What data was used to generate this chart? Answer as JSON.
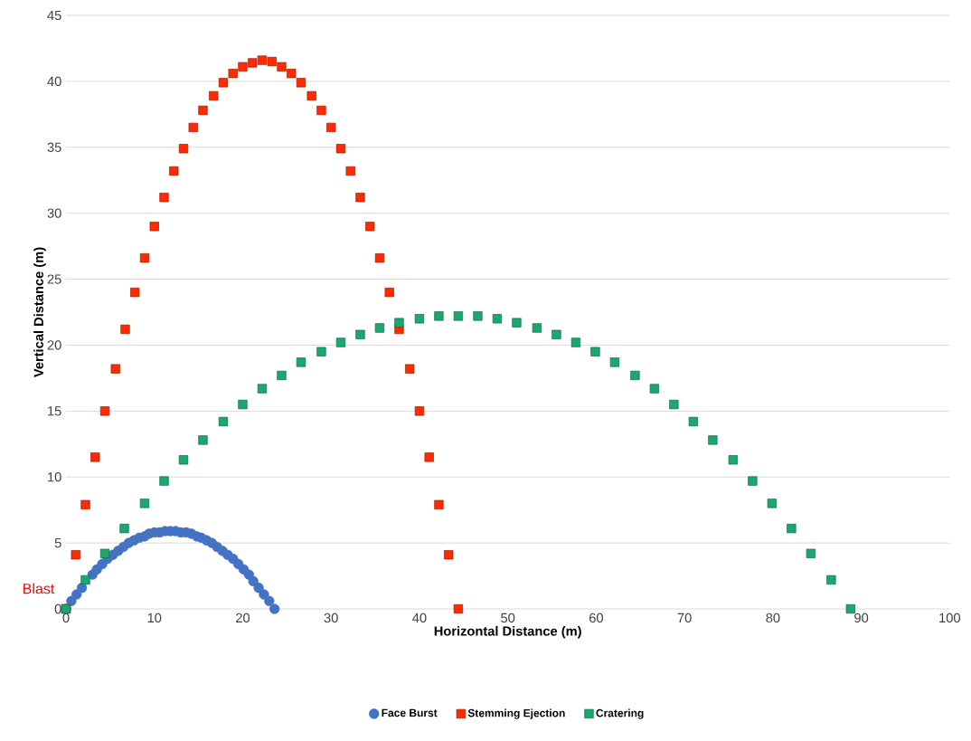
{
  "chart_data": {
    "type": "scatter",
    "xlabel": "Horizontal Distance (m)",
    "ylabel": "Vertical Distance (m)",
    "xlim": [
      0,
      100
    ],
    "xticks": [
      0,
      10,
      20,
      30,
      40,
      50,
      60,
      70,
      80,
      90,
      100
    ],
    "ylim": [
      0,
      45
    ],
    "yticks": [
      0,
      5,
      10,
      15,
      20,
      25,
      30,
      35,
      40,
      45
    ],
    "grid": "y",
    "legend": "bottom",
    "annotations": [
      {
        "text": "Blast",
        "x": 0,
        "y": 0
      }
    ],
    "series": [
      {
        "name": "Face Burst",
        "color": "#4472c4",
        "marker": "circle",
        "x": [
          0,
          0.6,
          1.2,
          1.8,
          2.4,
          3.0,
          3.5,
          4.1,
          4.7,
          5.3,
          5.9,
          6.5,
          7.1,
          7.7,
          8.3,
          8.9,
          9.4,
          10.0,
          10.6,
          11.2,
          11.8,
          12.4,
          13.0,
          13.6,
          14.2,
          14.8,
          15.3,
          15.9,
          16.5,
          17.1,
          17.7,
          18.3,
          18.9,
          19.5,
          20.1,
          20.7,
          21.2,
          21.8,
          22.4,
          23.0,
          23.6
        ],
        "values": [
          0,
          0.6,
          1.1,
          1.6,
          null,
          2.6,
          3.0,
          3.4,
          3.8,
          4.1,
          4.4,
          4.7,
          5.0,
          5.2,
          5.4,
          5.5,
          5.7,
          5.8,
          5.8,
          5.9,
          5.9,
          5.9,
          5.8,
          5.8,
          5.7,
          5.5,
          5.4,
          5.2,
          5.0,
          4.7,
          4.4,
          4.1,
          3.8,
          3.4,
          3.0,
          2.6,
          2.1,
          1.6,
          1.1,
          0.6,
          0
        ]
      },
      {
        "name": "Stemming Ejection",
        "color": "#ff2a00",
        "marker": "square",
        "x": [
          0,
          1.1,
          2.2,
          3.3,
          4.4,
          5.6,
          6.7,
          7.8,
          8.9,
          10.0,
          11.1,
          12.2,
          13.3,
          14.4,
          15.5,
          16.7,
          17.8,
          18.9,
          20.0,
          21.1,
          22.2,
          23.3,
          24.4,
          25.5,
          26.6,
          27.8,
          28.9,
          30.0,
          31.1,
          32.2,
          33.3,
          34.4,
          35.5,
          36.6,
          37.7,
          38.9,
          40.0,
          41.1,
          42.2,
          43.3,
          44.4
        ],
        "values": [
          0,
          4.1,
          7.9,
          11.5,
          15.0,
          18.2,
          21.2,
          24.0,
          26.6,
          29.0,
          31.2,
          33.2,
          34.9,
          36.5,
          37.8,
          38.9,
          39.9,
          40.6,
          41.1,
          41.4,
          41.6,
          41.5,
          41.1,
          40.6,
          39.9,
          38.9,
          37.8,
          36.5,
          34.9,
          33.2,
          31.2,
          29.0,
          26.6,
          24.0,
          21.2,
          18.2,
          15.0,
          11.5,
          7.9,
          4.1,
          0
        ]
      },
      {
        "name": "Cratering",
        "color": "#1aa86e",
        "marker": "square",
        "x": [
          0,
          2.2,
          4.4,
          6.6,
          8.9,
          11.1,
          13.3,
          15.5,
          17.8,
          20.0,
          22.2,
          24.4,
          26.6,
          28.9,
          31.1,
          33.3,
          35.5,
          37.7,
          40.0,
          42.2,
          44.4,
          46.6,
          48.8,
          51.0,
          53.3,
          55.5,
          57.7,
          59.9,
          62.1,
          64.4,
          66.6,
          68.8,
          71.0,
          73.2,
          75.5,
          77.7,
          79.9,
          82.1,
          84.3,
          86.6,
          88.8
        ],
        "values": [
          0,
          2.2,
          4.2,
          6.1,
          8.0,
          9.7,
          11.3,
          12.8,
          14.2,
          15.5,
          16.7,
          17.7,
          18.7,
          19.5,
          20.2,
          20.8,
          21.3,
          21.7,
          22.0,
          22.2,
          22.2,
          22.2,
          22.0,
          21.7,
          21.3,
          20.8,
          20.2,
          19.5,
          18.7,
          17.7,
          16.7,
          15.5,
          14.2,
          12.8,
          11.3,
          9.7,
          8.0,
          6.1,
          4.2,
          2.2,
          0
        ]
      }
    ]
  }
}
